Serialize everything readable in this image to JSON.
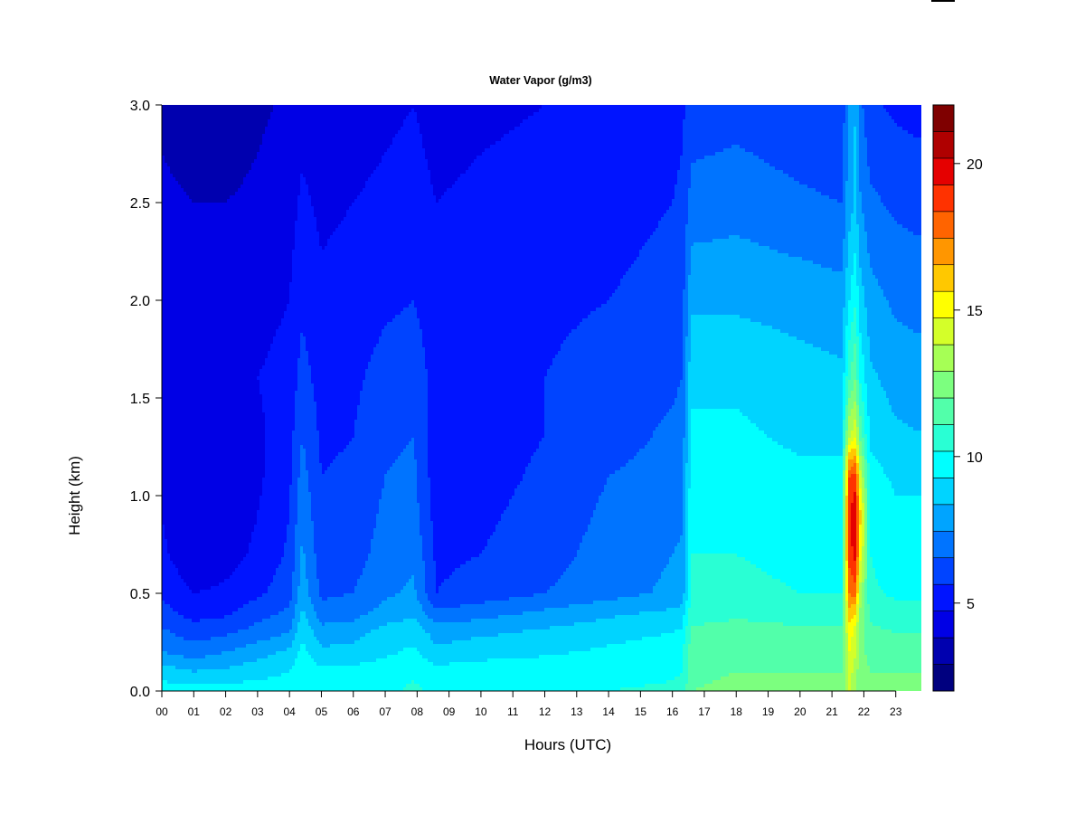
{
  "chart_data": {
    "type": "heatmap",
    "title": "Water Vapor (g/m3)",
    "xlabel": "Hours (UTC)",
    "ylabel": "Height (km)",
    "x_range": [
      0,
      24
    ],
    "y_range": [
      0.0,
      3.0
    ],
    "x_ticks": [
      "00",
      "01",
      "02",
      "03",
      "04",
      "05",
      "06",
      "07",
      "08",
      "09",
      "10",
      "11",
      "12",
      "13",
      "14",
      "15",
      "16",
      "17",
      "18",
      "19",
      "20",
      "21",
      "22",
      "23"
    ],
    "y_ticks": [
      "0.0",
      "0.5",
      "1.0",
      "1.5",
      "2.0",
      "2.5",
      "3.0"
    ],
    "colorbar": {
      "min": 2,
      "max": 22,
      "step": 1,
      "ticks": [
        "5",
        "10",
        "15",
        "20"
      ],
      "colors": [
        "#00007f",
        "#0000af",
        "#0000e5",
        "#0014ff",
        "#0044ff",
        "#0074ff",
        "#00a4ff",
        "#00d4ff",
        "#00ffff",
        "#29ffd4",
        "#52ffaa",
        "#7cff7f",
        "#a6ff55",
        "#d4ff29",
        "#ffff00",
        "#ffc800",
        "#ff9600",
        "#ff6400",
        "#ff3200",
        "#e50000",
        "#af0000",
        "#7f0000"
      ]
    },
    "grid": false,
    "field": {
      "hours": [
        0,
        1,
        2,
        3,
        4,
        4.4,
        5,
        6,
        7,
        7.9,
        8.6,
        10,
        12,
        14,
        16,
        16.3,
        16.6,
        18,
        20,
        21.3,
        21.55,
        21.75,
        21.85,
        22.2,
        23,
        24
      ],
      "heights_km": [
        0.0,
        0.1,
        0.2,
        0.3,
        0.4,
        0.5,
        0.7,
        0.9,
        1.1,
        1.3,
        1.6,
        2.0,
        2.5,
        3.0
      ],
      "values": [
        [
          10.5,
          10.5,
          10.5,
          10.5,
          10.5,
          11.0,
          10.6,
          10.6,
          10.8,
          11.2,
          10.8,
          10.9,
          11.0,
          11.0,
          11.1,
          11.2,
          13.0,
          13.2,
          13.2,
          13.2,
          15.0,
          14.0,
          13.6,
          13.2,
          13.2,
          13.2
        ],
        [
          9.5,
          9.0,
          9.2,
          9.6,
          10.0,
          10.8,
          10.2,
          10.3,
          10.5,
          10.8,
          10.4,
          10.5,
          10.7,
          10.8,
          10.9,
          11.0,
          12.8,
          13.0,
          13.0,
          13.0,
          15.5,
          14.5,
          13.5,
          13.0,
          13.0,
          13.0
        ],
        [
          8.0,
          7.5,
          8.0,
          8.6,
          9.2,
          10.3,
          9.2,
          9.4,
          9.8,
          10.2,
          9.2,
          9.6,
          9.8,
          10.2,
          10.6,
          10.8,
          12.6,
          12.8,
          12.6,
          12.6,
          16.0,
          15.0,
          13.5,
          12.6,
          12.4,
          12.5
        ],
        [
          7.2,
          6.5,
          6.8,
          7.4,
          8.0,
          9.8,
          8.4,
          8.6,
          9.4,
          9.6,
          8.6,
          8.8,
          9.2,
          9.6,
          10.0,
          10.2,
          12.2,
          12.4,
          12.2,
          12.2,
          16.5,
          15.5,
          13.5,
          12.2,
          12.0,
          12.0
        ],
        [
          6.4,
          5.6,
          5.8,
          6.6,
          7.2,
          9.2,
          7.4,
          7.6,
          8.4,
          8.8,
          7.2,
          7.6,
          8.2,
          8.8,
          9.2,
          9.4,
          11.6,
          11.8,
          11.6,
          11.6,
          17.5,
          17.0,
          14.0,
          11.8,
          11.4,
          11.4
        ],
        [
          5.8,
          5.0,
          5.2,
          5.8,
          6.6,
          8.6,
          6.8,
          7.0,
          7.8,
          8.2,
          6.0,
          6.4,
          7.0,
          7.6,
          8.2,
          8.4,
          11.2,
          11.2,
          11.0,
          11.0,
          19.0,
          19.5,
          15.0,
          11.2,
          10.8,
          10.8
        ],
        [
          5.2,
          4.2,
          4.6,
          5.2,
          6.2,
          8.2,
          6.4,
          6.6,
          7.4,
          7.8,
          5.8,
          6.0,
          6.6,
          7.4,
          8.0,
          8.2,
          11.0,
          11.0,
          10.8,
          10.8,
          20.5,
          21.5,
          17.0,
          11.0,
          10.4,
          10.4
        ],
        [
          5.0,
          4.0,
          4.4,
          5.0,
          6.0,
          7.8,
          6.2,
          6.4,
          7.2,
          7.4,
          5.6,
          5.8,
          6.4,
          7.2,
          7.6,
          7.8,
          10.8,
          10.8,
          10.6,
          10.6,
          21.0,
          22.0,
          18.0,
          10.8,
          10.2,
          10.2
        ],
        [
          4.8,
          4.0,
          4.4,
          4.8,
          5.8,
          7.4,
          6.0,
          6.2,
          7.0,
          7.2,
          5.4,
          5.6,
          6.2,
          7.0,
          7.4,
          7.6,
          10.6,
          10.6,
          10.2,
          10.2,
          20.0,
          20.5,
          16.0,
          10.4,
          9.8,
          9.8
        ],
        [
          4.8,
          4.2,
          4.6,
          4.8,
          5.6,
          7.0,
          5.8,
          6.0,
          6.8,
          7.0,
          5.4,
          5.6,
          6.0,
          6.6,
          7.2,
          7.4,
          10.2,
          10.2,
          9.8,
          9.8,
          15.0,
          16.0,
          13.0,
          9.8,
          9.2,
          9.0
        ],
        [
          4.8,
          4.4,
          4.6,
          5.0,
          5.4,
          6.4,
          5.6,
          5.8,
          6.4,
          6.6,
          5.6,
          5.8,
          6.0,
          6.4,
          6.8,
          7.0,
          9.8,
          9.8,
          9.4,
          9.2,
          12.0,
          13.0,
          11.0,
          9.2,
          8.6,
          8.4
        ],
        [
          4.6,
          4.4,
          4.4,
          4.6,
          5.0,
          5.8,
          5.2,
          5.4,
          5.8,
          6.0,
          5.4,
          5.6,
          5.8,
          6.0,
          6.4,
          6.6,
          8.8,
          8.8,
          8.6,
          8.4,
          10.0,
          11.0,
          9.6,
          8.4,
          7.8,
          7.6
        ],
        [
          4.2,
          4.0,
          4.0,
          4.2,
          4.6,
          5.2,
          4.8,
          5.0,
          5.2,
          5.4,
          5.0,
          5.2,
          5.4,
          5.6,
          6.0,
          6.2,
          7.4,
          7.6,
          7.2,
          7.0,
          8.6,
          9.2,
          8.2,
          7.2,
          6.8,
          6.6
        ],
        [
          3.8,
          3.4,
          3.4,
          3.8,
          4.2,
          4.6,
          4.4,
          4.6,
          4.8,
          5.0,
          4.6,
          4.8,
          5.0,
          5.2,
          5.6,
          5.8,
          6.4,
          6.6,
          6.2,
          6.0,
          8.8,
          9.0,
          7.4,
          6.2,
          5.8,
          5.6
        ]
      ]
    }
  }
}
